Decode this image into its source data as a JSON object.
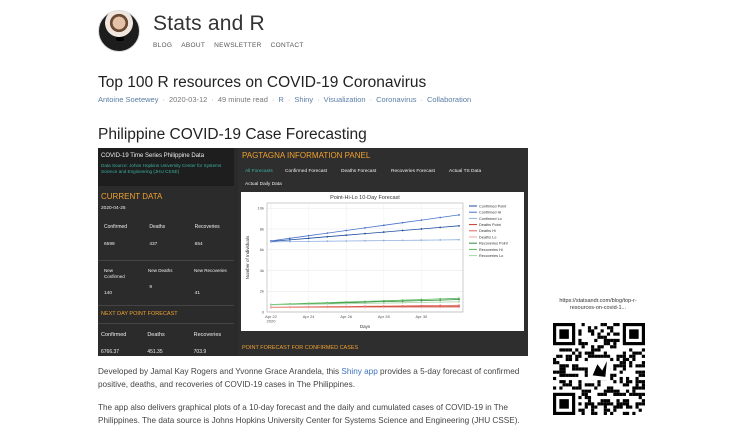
{
  "site": {
    "title": "Stats and R",
    "nav": [
      "BLOG",
      "ABOUT",
      "NEWSLETTER",
      "CONTACT"
    ]
  },
  "post": {
    "title": "Top 100 R resources on COVID-19 Coronavirus",
    "author": "Antoine Soetewey",
    "date": "2020-03-12",
    "read_time": "49 minute read",
    "tags": [
      "R",
      "Shiny",
      "Visualization",
      "Coronavirus",
      "Collaboration"
    ]
  },
  "section": {
    "title": "Philippine COVID-19 Case Forecasting"
  },
  "app": {
    "left_title": "COVID-19 Time Series Philippine Data",
    "left_source": "Data Source: Johns Hopkins University Center for Systems Science and Engineering (JHU CSSE)",
    "current_data_label": "CURRENT DATA",
    "current_date": "2020-04-25",
    "current_headers": [
      "Confirmed",
      "Deaths",
      "Recoveries"
    ],
    "current_values": [
      "6599",
      "437",
      "654"
    ],
    "new_headers": [
      "New Confirmed",
      "New Deaths",
      "New Recoveries"
    ],
    "new_values": [
      "140",
      "9",
      "41"
    ],
    "next_day_label": "NEXT DAY POINT FORECAST",
    "next_headers": [
      "Confirmed",
      "Deaths",
      "Recoveries"
    ],
    "next_values": [
      "6766.37",
      "451.35",
      "703.9"
    ],
    "panel_title": "PAGTAGNA INFORMATION PANEL",
    "tabs": [
      "All Forecasts",
      "Confirmed Forecast",
      "Deaths Forecast",
      "Recoveries Forecast",
      "Actual TS Data",
      "Actual Daily Data"
    ],
    "footer_label": "POINT FORECAST FOR CONFIRMED CASES"
  },
  "chart_data": {
    "type": "line",
    "title": "Point-Hi-Lo 10-Day Forecast",
    "xlabel": "Days",
    "ylabel": "Number of Individuals",
    "x_ticks": [
      "Apr 22\n2020",
      "Apr 24",
      "Apr 26",
      "Apr 28",
      "Apr 30"
    ],
    "y_ticks": [
      "0",
      "2k",
      "4k",
      "6k",
      "8k",
      "10k"
    ],
    "ylim": [
      0,
      10500
    ],
    "x": [
      0,
      1,
      2,
      3,
      4,
      5,
      6,
      7,
      8,
      9,
      10
    ],
    "series": [
      {
        "name": "Confirmed Point",
        "color": "#1f4e9c",
        "values": [
          6800,
          6950,
          7100,
          7250,
          7400,
          7550,
          7700,
          7850,
          8000,
          8150,
          8300
        ]
      },
      {
        "name": "Confirmed Hi",
        "color": "#4a74c9",
        "values": [
          6850,
          7100,
          7350,
          7600,
          7850,
          8100,
          8350,
          8600,
          8850,
          9100,
          9350
        ]
      },
      {
        "name": "Confirmed Lo",
        "color": "#8fb0e0",
        "values": [
          6750,
          6780,
          6800,
          6820,
          6840,
          6860,
          6880,
          6900,
          6920,
          6940,
          6960
        ]
      },
      {
        "name": "Deaths Point",
        "color": "#c0392b",
        "values": [
          440,
          450,
          460,
          470,
          480,
          490,
          500,
          510,
          520,
          530,
          540
        ]
      },
      {
        "name": "Deaths Hi",
        "color": "#e0625a",
        "values": [
          450,
          470,
          490,
          510,
          530,
          550,
          570,
          590,
          610,
          630,
          650
        ]
      },
      {
        "name": "Deaths Lo",
        "color": "#f0a8a0",
        "values": [
          430,
          432,
          434,
          436,
          438,
          440,
          442,
          444,
          446,
          448,
          450
        ]
      },
      {
        "name": "Recoveries Point",
        "color": "#2e8b3a",
        "values": [
          700,
          750,
          800,
          850,
          900,
          950,
          1000,
          1050,
          1100,
          1150,
          1200
        ]
      },
      {
        "name": "Recoveries Hi",
        "color": "#5cb85c",
        "values": [
          720,
          780,
          840,
          900,
          960,
          1020,
          1080,
          1140,
          1200,
          1260,
          1320
        ]
      },
      {
        "name": "Recoveries Lo",
        "color": "#a5d6a7",
        "values": [
          680,
          710,
          740,
          770,
          800,
          830,
          860,
          890,
          920,
          950,
          980
        ]
      }
    ],
    "grid": true,
    "legend": "right"
  },
  "description": {
    "p1_before": "Developed by Jamal Kay Rogers and Yvonne Grace Arandela, this ",
    "p1_link": "Shiny app",
    "p1_after": " provides a 5-day forecast of confirmed positive, deaths, and recoveries of COVID-19 cases in The Philippines.",
    "p2": "The app also delivers graphical plots of a 10-day forecast and the daily and cumulated cases of COVID-19 in The Philippines. The data source is Johns Hopkins University Center for Systems Science and Engineering (JHU CSSE)."
  },
  "qr": {
    "caption": "https://statsandr.com/blog/top-r-resources-on-covid-1..."
  }
}
